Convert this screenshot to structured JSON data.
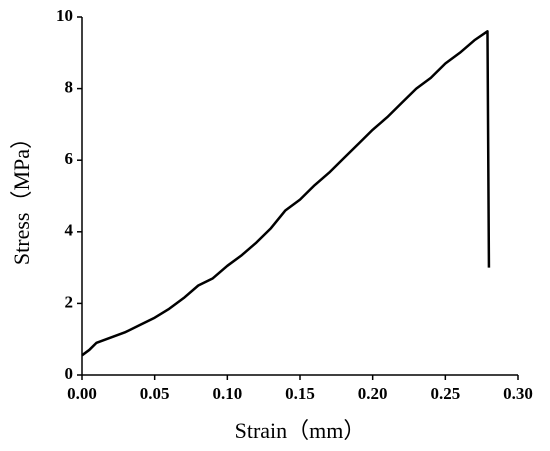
{
  "chart_data": {
    "type": "line",
    "x_label": "Strain（mm）",
    "y_label": "Stress（MPa）",
    "x": [
      0,
      0.005,
      0.01,
      0.02,
      0.03,
      0.04,
      0.05,
      0.06,
      0.07,
      0.08,
      0.09,
      0.1,
      0.11,
      0.12,
      0.13,
      0.14,
      0.15,
      0.16,
      0.17,
      0.18,
      0.19,
      0.2,
      0.21,
      0.22,
      0.23,
      0.24,
      0.25,
      0.26,
      0.27,
      0.279,
      0.28
    ],
    "values": [
      0.55,
      0.7,
      0.9,
      1.05,
      1.2,
      1.4,
      1.6,
      1.85,
      2.15,
      2.5,
      2.7,
      3.05,
      3.35,
      3.7,
      4.1,
      4.6,
      4.9,
      5.3,
      5.65,
      6.05,
      6.45,
      6.85,
      7.2,
      7.6,
      8.0,
      8.3,
      8.7,
      9.0,
      9.35,
      9.6,
      3.0
    ],
    "color": "#000000",
    "xlim": [
      0,
      0.3
    ],
    "xticks": [
      {
        "value": 0,
        "label": "0.00"
      },
      {
        "value": 0.05,
        "label": "0.05"
      },
      {
        "value": 0.1,
        "label": "0.10"
      },
      {
        "value": 0.15,
        "label": "0.15"
      },
      {
        "value": 0.2,
        "label": "0.20"
      },
      {
        "value": 0.25,
        "label": "0.25"
      },
      {
        "value": 0.3,
        "label": "0.30"
      }
    ],
    "ylim": [
      0,
      10
    ],
    "yticks": [
      0,
      2,
      4,
      6,
      8,
      10
    ],
    "grid": false
  }
}
